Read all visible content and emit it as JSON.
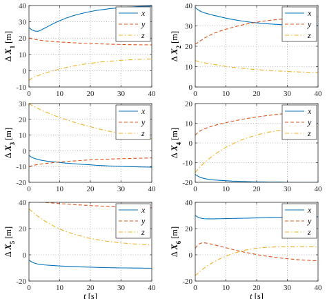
{
  "chart_data": [
    {
      "type": "line",
      "ylabel_delta": "Δ",
      "ylabel_symbol": "X",
      "ylabel_index": "1",
      "ylabel_unit": "[m]",
      "xlabel_var": "t",
      "xlabel_unit": "[s]",
      "xlim": [
        0,
        40
      ],
      "ylim": [
        -10,
        40
      ],
      "xticks": [
        "0",
        "10",
        "20",
        "30",
        "40"
      ],
      "yticks": [
        "-10",
        "0",
        "10",
        "20",
        "30",
        "40"
      ],
      "grid": true,
      "legend_position": "top-right",
      "x": [
        0,
        1,
        2,
        3,
        4,
        5,
        6,
        8,
        10,
        12,
        14,
        16,
        18,
        20,
        22,
        24,
        26,
        28,
        30,
        32,
        34,
        36,
        38,
        40
      ],
      "series": [
        {
          "name": "x",
          "color": "#0072BD",
          "dash": "solid",
          "values": [
            26.5,
            25,
            24.3,
            24.2,
            25,
            26,
            27,
            29,
            30.7,
            32.2,
            33.5,
            34.6,
            35.5,
            36.3,
            37,
            37.5,
            38,
            38.4,
            38.7,
            39,
            39.2,
            39.4,
            39.5,
            39.6
          ]
        },
        {
          "name": "y",
          "color": "#D95319",
          "dash": "dashed",
          "values": [
            20,
            19.6,
            19.2,
            18.9,
            18.6,
            18.4,
            18.2,
            17.9,
            17.6,
            17.4,
            17.2,
            17,
            16.8,
            16.7,
            16.5,
            16.4,
            16.3,
            16.2,
            16.1,
            16,
            16,
            15.9,
            15.9,
            15.8
          ]
        },
        {
          "name": "z",
          "color": "#EDB120",
          "dash": "dashdot",
          "values": [
            -6,
            -4.5,
            -3.6,
            -3,
            -2.3,
            -1.6,
            -1,
            0.1,
            1,
            1.9,
            2.7,
            3.4,
            4,
            4.6,
            5,
            5.5,
            5.8,
            6.1,
            6.4,
            6.6,
            6.8,
            7,
            7.1,
            7.2
          ]
        }
      ]
    },
    {
      "type": "line",
      "ylabel_delta": "Δ",
      "ylabel_symbol": "X",
      "ylabel_index": "2",
      "ylabel_unit": "[m]",
      "xlabel_var": "t",
      "xlabel_unit": "[s]",
      "xlim": [
        0,
        40
      ],
      "ylim": [
        0,
        40
      ],
      "xticks": [
        "0",
        "10",
        "20",
        "30",
        "40"
      ],
      "yticks": [
        "0",
        "10",
        "20",
        "30",
        "40"
      ],
      "grid": true,
      "legend_position": "top-right",
      "x": [
        0,
        1,
        2,
        3,
        4,
        5,
        6,
        8,
        10,
        12,
        14,
        16,
        18,
        20,
        22,
        24,
        26,
        28,
        30,
        32,
        34,
        36,
        38,
        40
      ],
      "series": [
        {
          "name": "x",
          "color": "#0072BD",
          "dash": "solid",
          "values": [
            39,
            37.8,
            37,
            36.4,
            36,
            35.6,
            35.2,
            34.5,
            33.8,
            33.2,
            32.7,
            32.2,
            31.8,
            31.5,
            31.2,
            31,
            30.8,
            30.6,
            30.5,
            30.4,
            30.3,
            30.2,
            30.2,
            30.1
          ]
        },
        {
          "name": "y",
          "color": "#D95319",
          "dash": "dashed",
          "values": [
            21,
            22,
            23,
            24,
            24.8,
            25.6,
            26.3,
            27.4,
            28.4,
            29.2,
            30,
            30.7,
            31.3,
            31.8,
            32.3,
            32.7,
            33,
            33.3,
            33.6,
            33.8,
            34,
            34.2,
            34.3,
            34.5
          ]
        },
        {
          "name": "z",
          "color": "#EDB120",
          "dash": "dashdot",
          "values": [
            13,
            12.6,
            12.2,
            11.9,
            11.6,
            11.3,
            11.1,
            10.6,
            10.1,
            9.7,
            9.4,
            9.1,
            8.8,
            8.6,
            8.3,
            8.1,
            7.9,
            7.8,
            7.6,
            7.5,
            7.4,
            7.3,
            7.2,
            7.1
          ]
        }
      ]
    },
    {
      "type": "line",
      "ylabel_delta": "Δ",
      "ylabel_symbol": "X",
      "ylabel_index": "3",
      "ylabel_unit": "[m]",
      "xlabel_var": "t",
      "xlabel_unit": "[s]",
      "xlim": [
        0,
        40
      ],
      "ylim": [
        -20,
        30
      ],
      "xticks": [
        "0",
        "10",
        "20",
        "30",
        "40"
      ],
      "yticks": [
        "-20",
        "-10",
        "0",
        "10",
        "20",
        "30"
      ],
      "grid": true,
      "legend_position": "top-right",
      "x": [
        0,
        1,
        2,
        3,
        4,
        5,
        6,
        8,
        10,
        12,
        14,
        16,
        18,
        20,
        22,
        24,
        26,
        28,
        30,
        32,
        34,
        36,
        38,
        40
      ],
      "series": [
        {
          "name": "x",
          "color": "#0072BD",
          "dash": "solid",
          "values": [
            -3,
            -4.2,
            -5,
            -5.5,
            -6,
            -6.3,
            -6.6,
            -7,
            -7.4,
            -7.8,
            -8.1,
            -8.4,
            -8.7,
            -8.9,
            -9.2,
            -9.4,
            -9.6,
            -9.7,
            -9.9,
            -10,
            -10.1,
            -10.2,
            -10.3,
            -10.4
          ]
        },
        {
          "name": "y",
          "color": "#D95319",
          "dash": "dashed",
          "values": [
            -10,
            -9.5,
            -9,
            -8.7,
            -8.4,
            -8.1,
            -7.9,
            -7.5,
            -7.1,
            -6.8,
            -6.5,
            -6.3,
            -6,
            -5.8,
            -5.6,
            -5.4,
            -5.3,
            -5.1,
            -5,
            -4.9,
            -4.8,
            -4.7,
            -4.6,
            -4.5
          ]
        },
        {
          "name": "z",
          "color": "#EDB120",
          "dash": "dashdot",
          "values": [
            30,
            28.8,
            27.8,
            26.8,
            25.9,
            25,
            24.2,
            22.6,
            21.2,
            19.9,
            18.6,
            17.4,
            16.3,
            15.3,
            14.3,
            13.3,
            12.5,
            11.7,
            10.9,
            10.2,
            9.5,
            8.9,
            8.3,
            7.8
          ]
        }
      ]
    },
    {
      "type": "line",
      "ylabel_delta": "Δ",
      "ylabel_symbol": "X",
      "ylabel_index": "4",
      "ylabel_unit": "[m]",
      "xlabel_var": "t",
      "xlabel_unit": "[s]",
      "xlim": [
        0,
        40
      ],
      "ylim": [
        -20,
        20
      ],
      "xticks": [
        "0",
        "10",
        "20",
        "30",
        "40"
      ],
      "yticks": [
        "-20",
        "-10",
        "0",
        "10",
        "20"
      ],
      "grid": true,
      "legend_position": "top-right",
      "x": [
        0,
        1,
        2,
        3,
        4,
        5,
        6,
        8,
        10,
        12,
        14,
        16,
        18,
        20,
        22,
        24,
        26,
        28,
        30,
        32,
        34,
        36,
        38,
        40
      ],
      "series": [
        {
          "name": "x",
          "color": "#0072BD",
          "dash": "solid",
          "values": [
            -16,
            -17,
            -17.7,
            -18.1,
            -18.4,
            -18.6,
            -18.8,
            -19,
            -19.2,
            -19.4,
            -19.5,
            -19.6,
            -19.7,
            -19.8,
            -19.8,
            -19.9,
            -19.9,
            -19.9,
            -20,
            -20,
            -20,
            -20,
            -20,
            -20
          ]
        },
        {
          "name": "y",
          "color": "#D95319",
          "dash": "dashed",
          "values": [
            4,
            5.5,
            6.5,
            7.2,
            7.8,
            8.3,
            8.8,
            9.6,
            10.3,
            11,
            11.6,
            12.2,
            12.7,
            13.2,
            13.6,
            14,
            14.4,
            14.7,
            15,
            15.3,
            15.5,
            15.8,
            16,
            16.2
          ]
        },
        {
          "name": "z",
          "color": "#EDB120",
          "dash": "dashdot",
          "values": [
            -15,
            -13.2,
            -11.5,
            -10,
            -8.7,
            -7.4,
            -6.2,
            -4.1,
            -2.2,
            -0.6,
            0.9,
            2.1,
            3.1,
            4,
            4.8,
            5.5,
            6,
            6.5,
            6.9,
            7.3,
            7.6,
            7.8,
            8,
            8.2
          ]
        }
      ]
    },
    {
      "type": "line",
      "ylabel_delta": "Δ",
      "ylabel_symbol": "X",
      "ylabel_index": "5",
      "ylabel_unit": "[m]",
      "xlabel_var": "t",
      "xlabel_unit": "[s]",
      "xlim": [
        0,
        40
      ],
      "ylim": [
        -20,
        40
      ],
      "xticks": [
        "0",
        "10",
        "20",
        "30",
        "40"
      ],
      "yticks": [
        "-20",
        "0",
        "20",
        "40"
      ],
      "grid": true,
      "legend_position": "top-right",
      "x": [
        0,
        1,
        2,
        3,
        4,
        5,
        6,
        8,
        10,
        12,
        14,
        16,
        18,
        20,
        22,
        24,
        26,
        28,
        30,
        32,
        34,
        36,
        38,
        40
      ],
      "series": [
        {
          "name": "x",
          "color": "#0072BD",
          "dash": "solid",
          "values": [
            -4,
            -5.6,
            -6.5,
            -7.1,
            -7.4,
            -7.7,
            -7.9,
            -8.2,
            -8.5,
            -8.7,
            -8.9,
            -9.1,
            -9.3,
            -9.4,
            -9.6,
            -9.7,
            -9.8,
            -9.9,
            -10,
            -10,
            -10.1,
            -10.1,
            -10.2,
            -10.2
          ]
        },
        {
          "name": "y",
          "color": "#D95319",
          "dash": "dashed",
          "values": [
            41,
            40.8,
            40.6,
            40.4,
            40.2,
            40,
            39.8,
            39.4,
            39,
            38.7,
            38.4,
            38.1,
            37.8,
            37.5,
            37.3,
            37.1,
            36.9,
            36.7,
            36.5,
            36.3,
            36.2,
            36,
            35.9,
            35.8
          ]
        },
        {
          "name": "z",
          "color": "#EDB120",
          "dash": "dashdot",
          "values": [
            35,
            33,
            31,
            29.2,
            27.6,
            26,
            24.6,
            22,
            19.7,
            17.8,
            16.2,
            14.8,
            13.6,
            12.5,
            11.6,
            10.8,
            10.2,
            9.6,
            9.1,
            8.7,
            8.3,
            8,
            7.7,
            7.5
          ]
        }
      ]
    },
    {
      "type": "line",
      "ylabel_delta": "Δ",
      "ylabel_symbol": "X",
      "ylabel_index": "6",
      "ylabel_unit": "[m]",
      "xlabel_var": "t",
      "xlabel_unit": "[s]",
      "xlim": [
        0,
        40
      ],
      "ylim": [
        -20,
        40
      ],
      "xticks": [
        "0",
        "10",
        "20",
        "30",
        "40"
      ],
      "yticks": [
        "-20",
        "0",
        "20",
        "40"
      ],
      "grid": true,
      "legend_position": "top-right",
      "x": [
        0,
        1,
        2,
        3,
        4,
        5,
        6,
        8,
        10,
        12,
        14,
        16,
        18,
        20,
        22,
        24,
        26,
        28,
        30,
        32,
        34,
        36,
        38,
        40
      ],
      "series": [
        {
          "name": "x",
          "color": "#0072BD",
          "dash": "solid",
          "values": [
            30,
            28.5,
            27.8,
            27.5,
            27.4,
            27.4,
            27.4,
            27.5,
            27.6,
            27.7,
            27.8,
            27.9,
            28,
            28.1,
            28.2,
            28.3,
            28.4,
            28.5,
            28.6,
            28.7,
            28.8,
            28.9,
            29,
            29
          ]
        },
        {
          "name": "y",
          "color": "#D95319",
          "dash": "dashed",
          "values": [
            5,
            8,
            9,
            9.1,
            8.8,
            8.3,
            7.7,
            6.6,
            5.4,
            4.2,
            3.1,
            2,
            1.1,
            0.2,
            -0.6,
            -1.3,
            -1.9,
            -2.5,
            -3,
            -3.4,
            -3.8,
            -4.1,
            -4.4,
            -4.6
          ]
        },
        {
          "name": "z",
          "color": "#EDB120",
          "dash": "dashdot",
          "values": [
            -16,
            -13.8,
            -11.8,
            -10,
            -8.4,
            -6.9,
            -5.5,
            -3,
            -1,
            0.8,
            2.2,
            3.4,
            4.3,
            5,
            5.5,
            5.8,
            6,
            6.1,
            6.2,
            6.2,
            6.2,
            6.1,
            6.1,
            6
          ]
        }
      ]
    }
  ]
}
